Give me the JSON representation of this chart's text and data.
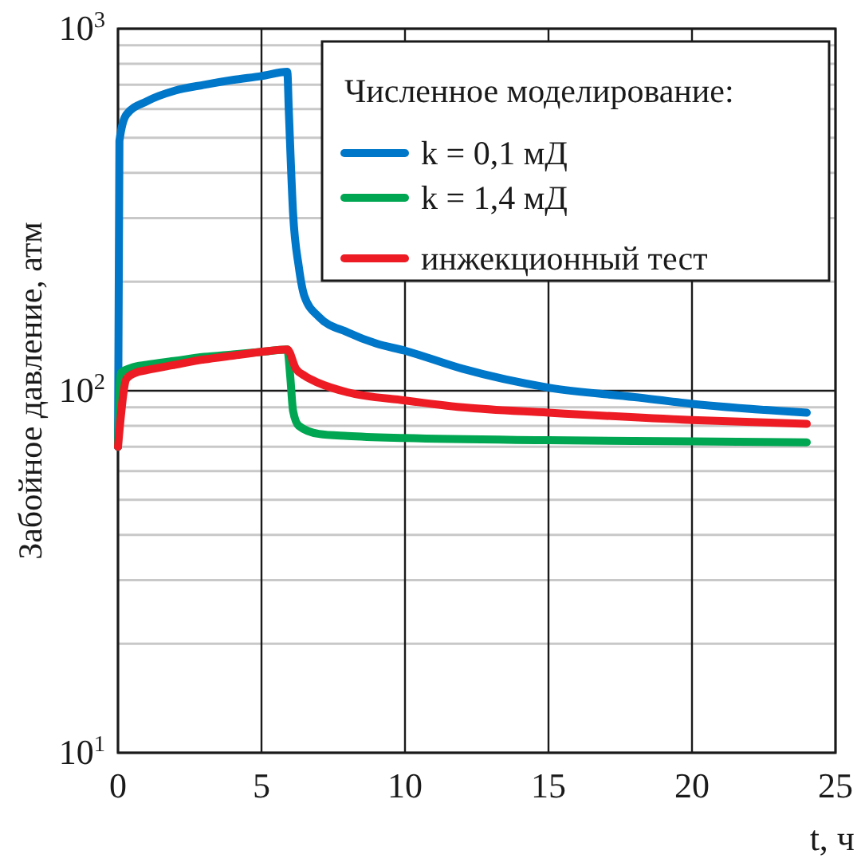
{
  "chart_data": {
    "type": "line",
    "xlabel": "t, ч",
    "ylabel": "Забойное давление, атм",
    "legend_title": "Численное моделирование:",
    "log": "y",
    "grid": true,
    "legend": "top right",
    "line_style": "solid",
    "xlim": [
      0,
      25
    ],
    "xticks": [
      0,
      5,
      10,
      15,
      20,
      25
    ],
    "ylim": [
      10,
      1000
    ],
    "yticks": [
      {
        "value": 10,
        "label": "10$^{1}$"
      },
      {
        "value": 20,
        "label": null
      },
      {
        "value": 30,
        "label": null
      },
      {
        "value": 40,
        "label": null
      },
      {
        "value": 50,
        "label": null
      },
      {
        "value": 60,
        "label": null
      },
      {
        "value": 70,
        "label": null
      },
      {
        "value": 80,
        "label": null
      },
      {
        "value": 90,
        "label": null
      },
      {
        "value": 100,
        "label": "10$^{2}$"
      },
      {
        "value": 200,
        "label": null
      },
      {
        "value": 300,
        "label": null
      },
      {
        "value": 400,
        "label": null
      },
      {
        "value": 500,
        "label": null
      },
      {
        "value": 600,
        "label": null
      },
      {
        "value": 700,
        "label": null
      },
      {
        "value": 800,
        "label": null
      },
      {
        "value": 900,
        "label": null
      },
      {
        "value": 1000,
        "label": "10$^{3}$"
      }
    ],
    "series": [
      {
        "name": "k = 0,1 мД",
        "color": "#0077c8",
        "x": [
          0,
          0.05,
          0.3,
          1,
          2,
          3,
          4,
          5,
          5.9,
          5.95,
          6.1,
          6.3,
          6.5,
          7,
          8,
          9,
          10,
          12,
          15,
          18,
          20,
          24
        ],
        "values": [
          70,
          490,
          580,
          630,
          675,
          700,
          722,
          740,
          760,
          600,
          310,
          220,
          182,
          160,
          145,
          135,
          129,
          115,
          102,
          96,
          92,
          87
        ]
      },
      {
        "name": "k = 1,4 мД",
        "color": "#00a651",
        "x": [
          0,
          0.1,
          0.5,
          1,
          2,
          3,
          4,
          5,
          5.9,
          6,
          6.1,
          6.3,
          7,
          8,
          10,
          15,
          20,
          24
        ],
        "values": [
          70,
          112,
          116,
          118,
          121,
          124,
          126,
          128,
          130,
          110,
          88,
          80,
          76,
          75,
          74,
          73,
          72.5,
          72
        ]
      },
      {
        "name": "инжекционный тест",
        "color": "#ed1c24",
        "x": [
          0,
          0.3,
          0.6,
          1,
          2,
          3,
          4,
          5,
          5.9,
          6.2,
          6.5,
          7,
          8,
          10,
          12,
          15,
          20,
          24
        ],
        "values": [
          70,
          108,
          112,
          114,
          118,
          122,
          125,
          128,
          130,
          115,
          110,
          105,
          99,
          94,
          90,
          87,
          83,
          81
        ]
      }
    ]
  }
}
